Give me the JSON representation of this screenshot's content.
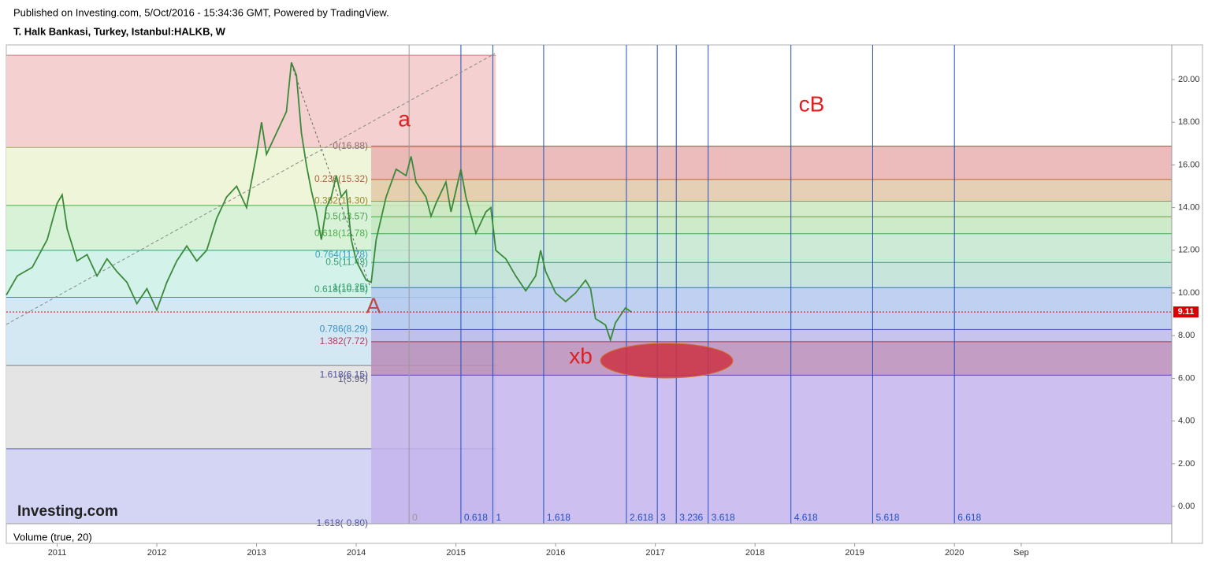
{
  "header": {
    "published": "Published on Investing.com, 5/Oct/2016 - 15:34:36 GMT, Powered by TradingView.",
    "symbol": "T. Halk Bankasi, Turkey, Istanbul:HALKB, W"
  },
  "chart_data": {
    "type": "line",
    "color": "#3a8a3a",
    "x": [
      2010.49,
      2010.6,
      2010.75,
      2010.9,
      2011.0,
      2011.05,
      2011.1,
      2011.2,
      2011.3,
      2011.4,
      2011.5,
      2011.6,
      2011.7,
      2011.8,
      2011.9,
      2012.0,
      2012.1,
      2012.2,
      2012.3,
      2012.4,
      2012.5,
      2012.6,
      2012.7,
      2012.8,
      2012.9,
      2013.0,
      2013.05,
      2013.1,
      2013.2,
      2013.3,
      2013.35,
      2013.4,
      2013.45,
      2013.5,
      2013.55,
      2013.6,
      2013.65,
      2013.7,
      2013.75,
      2013.8,
      2013.85,
      2013.9,
      2013.95,
      2014.0,
      2014.1,
      2014.15,
      2014.2,
      2014.25,
      2014.3,
      2014.4,
      2014.5,
      2014.55,
      2014.6,
      2014.7,
      2014.75,
      2014.8,
      2014.9,
      2014.95,
      2015.0,
      2015.05,
      2015.1,
      2015.2,
      2015.3,
      2015.35,
      2015.4,
      2015.5,
      2015.6,
      2015.7,
      2015.8,
      2015.85,
      2015.9,
      2016.0,
      2016.1,
      2016.2,
      2016.3,
      2016.35,
      2016.4,
      2016.5,
      2016.55,
      2016.6,
      2016.7,
      2016.76
    ],
    "series": [
      {
        "values": [
          9.9,
          10.8,
          11.2,
          12.5,
          14.2,
          14.6,
          13.0,
          11.5,
          11.8,
          10.8,
          11.6,
          11.0,
          10.5,
          9.5,
          10.2,
          9.2,
          10.5,
          11.5,
          12.2,
          11.5,
          12.0,
          13.5,
          14.5,
          15.0,
          14.0,
          16.5,
          18.0,
          16.5,
          17.5,
          18.5,
          20.8,
          20.2,
          17.5,
          16.0,
          14.8,
          13.8,
          12.5,
          14.0,
          14.5,
          15.5,
          14.5,
          14.8,
          12.5,
          11.5,
          10.6,
          10.5,
          12.5,
          13.5,
          14.5,
          15.8,
          15.5,
          16.4,
          15.2,
          14.5,
          13.6,
          14.2,
          15.2,
          13.8,
          14.8,
          15.8,
          14.5,
          12.8,
          13.8,
          14.0,
          12.0,
          11.6,
          10.8,
          10.1,
          10.8,
          12.0,
          11.0,
          10.0,
          9.6,
          10.0,
          10.6,
          10.2,
          8.8,
          8.5,
          7.8,
          8.6,
          9.3,
          9.11
        ]
      }
    ],
    "last": 9.11,
    "xlim": [
      2010.49,
      2022.18
    ],
    "xticks": [
      2011,
      2012,
      2013,
      2014,
      2015,
      2016,
      2017,
      2018,
      2019,
      2020,
      {
        "value": 2020.67,
        "label": "Sep"
      }
    ],
    "ylim": [
      -0.81,
      21.44
    ],
    "yticks": [
      {
        "value": 0,
        "label": "0.00"
      },
      {
        "value": 2,
        "label": "2.00"
      },
      {
        "value": 4,
        "label": "4.00"
      },
      {
        "value": 6,
        "label": "6.00"
      },
      {
        "value": 8,
        "label": "8.00"
      },
      {
        "value": 10,
        "label": "10.00"
      },
      {
        "value": 12,
        "label": "12.00"
      },
      {
        "value": 14,
        "label": "14.00"
      },
      {
        "value": 16,
        "label": "16.00"
      },
      {
        "value": 18,
        "label": "18.00"
      },
      {
        "value": 20,
        "label": "20.00"
      }
    ],
    "left_zones": [
      {
        "from": 21.14,
        "to": 16.82,
        "color": "#f4d0d0",
        "line": "#d08080"
      },
      {
        "from": 16.82,
        "to": 14.1,
        "color": "#eef5d8",
        "line": "#a0b040"
      },
      {
        "from": 14.1,
        "to": 12.0,
        "color": "#d8f2d8",
        "line": "#40b040"
      },
      {
        "from": 12.0,
        "to": 9.8,
        "color": "#d2f2ea",
        "line": "#30a080"
      },
      {
        "from": 9.8,
        "to": 6.6,
        "color": "#d4e8f4",
        "line": "#4080b0"
      },
      {
        "from": 6.6,
        "to": 2.7,
        "color": "#e4e4e4",
        "line": "#808080"
      },
      {
        "from": 2.7,
        "to": -0.81,
        "color": "#d4d4f4",
        "line": "#6060c0"
      }
    ],
    "right_zones": [
      {
        "from": 16.88,
        "to": 15.32,
        "color": "#e9b0b0",
        "line": "#c04040"
      },
      {
        "from": 15.32,
        "to": 14.3,
        "color": "#e2c8a8",
        "line": "#c06030"
      },
      {
        "from": 14.3,
        "to": 13.57,
        "color": "#cde8c0",
        "line": "#90a030"
      },
      {
        "from": 13.57,
        "to": 12.78,
        "color": "#c4e8c0",
        "line": "#40b040"
      },
      {
        "from": 12.78,
        "to": 11.43,
        "color": "#c4e6d0",
        "line": "#40b060"
      },
      {
        "from": 11.43,
        "to": 10.25,
        "color": "#bee0d6",
        "line": "#30a080"
      },
      {
        "from": 10.25,
        "to": 8.29,
        "color": "#b4c8ee",
        "line": "#3070c0"
      },
      {
        "from": 8.29,
        "to": 7.72,
        "color": "#bcb8ea",
        "line": "#5050b0"
      },
      {
        "from": 7.72,
        "to": 6.15,
        "color": "#b98cb8",
        "line": "#a03050"
      },
      {
        "from": 6.15,
        "to": -0.8,
        "color": "#c4b4ec",
        "line": "#6040b0"
      }
    ],
    "fib_labels": [
      {
        "value": 16.88,
        "label": "0(16.88)",
        "color": "#8c6d6d"
      },
      {
        "value": 15.32,
        "label": "0.236(15.32)",
        "color": "#b0643c"
      },
      {
        "value": 14.3,
        "label": "0.382(14.30)",
        "color": "#9a8a2a"
      },
      {
        "value": 13.57,
        "label": "0.5(13.57)",
        "color": "#4ca04c"
      },
      {
        "value": 12.78,
        "label": "0.618(12.78)",
        "color": "#4cae4c"
      },
      {
        "value": 11.78,
        "label": "0.764(11.78)",
        "color": "#3b9fc1"
      },
      {
        "value": 11.43,
        "label": "0.5(11.43)",
        "color": "#3aa070"
      },
      {
        "value": 10.25,
        "label": "1(10.25)",
        "color": "#3aa070"
      },
      {
        "value": 10.15,
        "label": "0.618(10.15)",
        "color": "#3aa070"
      },
      {
        "value": 8.29,
        "label": "0.786(8.29)",
        "color": "#3b8fc1"
      },
      {
        "value": 7.72,
        "label": "1.382(7.72)",
        "color": "#b04060"
      },
      {
        "value": 6.15,
        "label": "1.618(6.15)",
        "color": "#5050a0"
      },
      {
        "value": 5.95,
        "label": "1(5.95)",
        "color": "#606080"
      },
      {
        "value": -0.8,
        "label": "1.618(-0.80)",
        "color": "#5050a0"
      }
    ],
    "time_fib": [
      {
        "value": 2014.53,
        "label": "0",
        "color": "#999999"
      },
      {
        "value": 2015.05,
        "label": "0.618",
        "color": "#2050c0"
      },
      {
        "value": 2015.37,
        "label": "1",
        "color": "#2050c0"
      },
      {
        "value": 2015.88,
        "label": "1.618",
        "color": "#2050c0"
      },
      {
        "value": 2016.71,
        "label": "2.618",
        "color": "#2050c0"
      },
      {
        "value": 2017.02,
        "label": "3",
        "color": "#2050c0"
      },
      {
        "value": 2017.21,
        "label": "3.236",
        "color": "#2050c0"
      },
      {
        "value": 2017.53,
        "label": "3.618",
        "color": "#2050c0"
      },
      {
        "value": 2018.36,
        "label": "4.618",
        "color": "#2050c0"
      },
      {
        "value": 2019.18,
        "label": "5.618",
        "color": "#2050c0"
      },
      {
        "value": 2020.0,
        "label": "6.618",
        "color": "#2050c0"
      }
    ],
    "annotations": [
      "a",
      "cB",
      "A",
      "xb"
    ],
    "volume_label": "Volume (true, 20)",
    "logo": "Investing.com"
  }
}
